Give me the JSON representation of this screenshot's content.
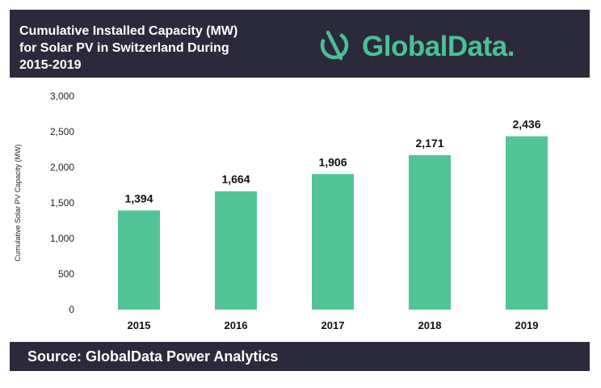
{
  "header": {
    "title_lines": [
      "Cumulative Installed Capacity (MW)",
      "for Solar PV in Switzerland During",
      "2015-2019"
    ],
    "logo_text": "GlobalData.",
    "logo_icon": "globaldata-logo-icon"
  },
  "footer": {
    "source": "Source: GlobalData Power Analytics"
  },
  "colors": {
    "header_bg": "#2b2a3c",
    "bar": "#52c497",
    "brand_green": "#49c195"
  },
  "chart_data": {
    "type": "bar",
    "title": "Cumulative Installed Capacity (MW) for Solar PV in Switzerland During 2015-2019",
    "categories": [
      "2015",
      "2016",
      "2017",
      "2018",
      "2019"
    ],
    "values": [
      1394,
      1664,
      1906,
      2171,
      2436
    ],
    "value_labels": [
      "1,394",
      "1,664",
      "1,906",
      "2,171",
      "2,436"
    ],
    "ylabel": "Cumulative Solar PV Capacity (MW)",
    "xlabel": "",
    "ylim": [
      0,
      3000
    ],
    "yticks": [
      0,
      500,
      1000,
      1500,
      2000,
      2500,
      3000
    ],
    "ytick_labels": [
      "0",
      "500",
      "1,000",
      "1,500",
      "2,000",
      "2,500",
      "3,000"
    ],
    "grid": false,
    "legend": "none"
  }
}
